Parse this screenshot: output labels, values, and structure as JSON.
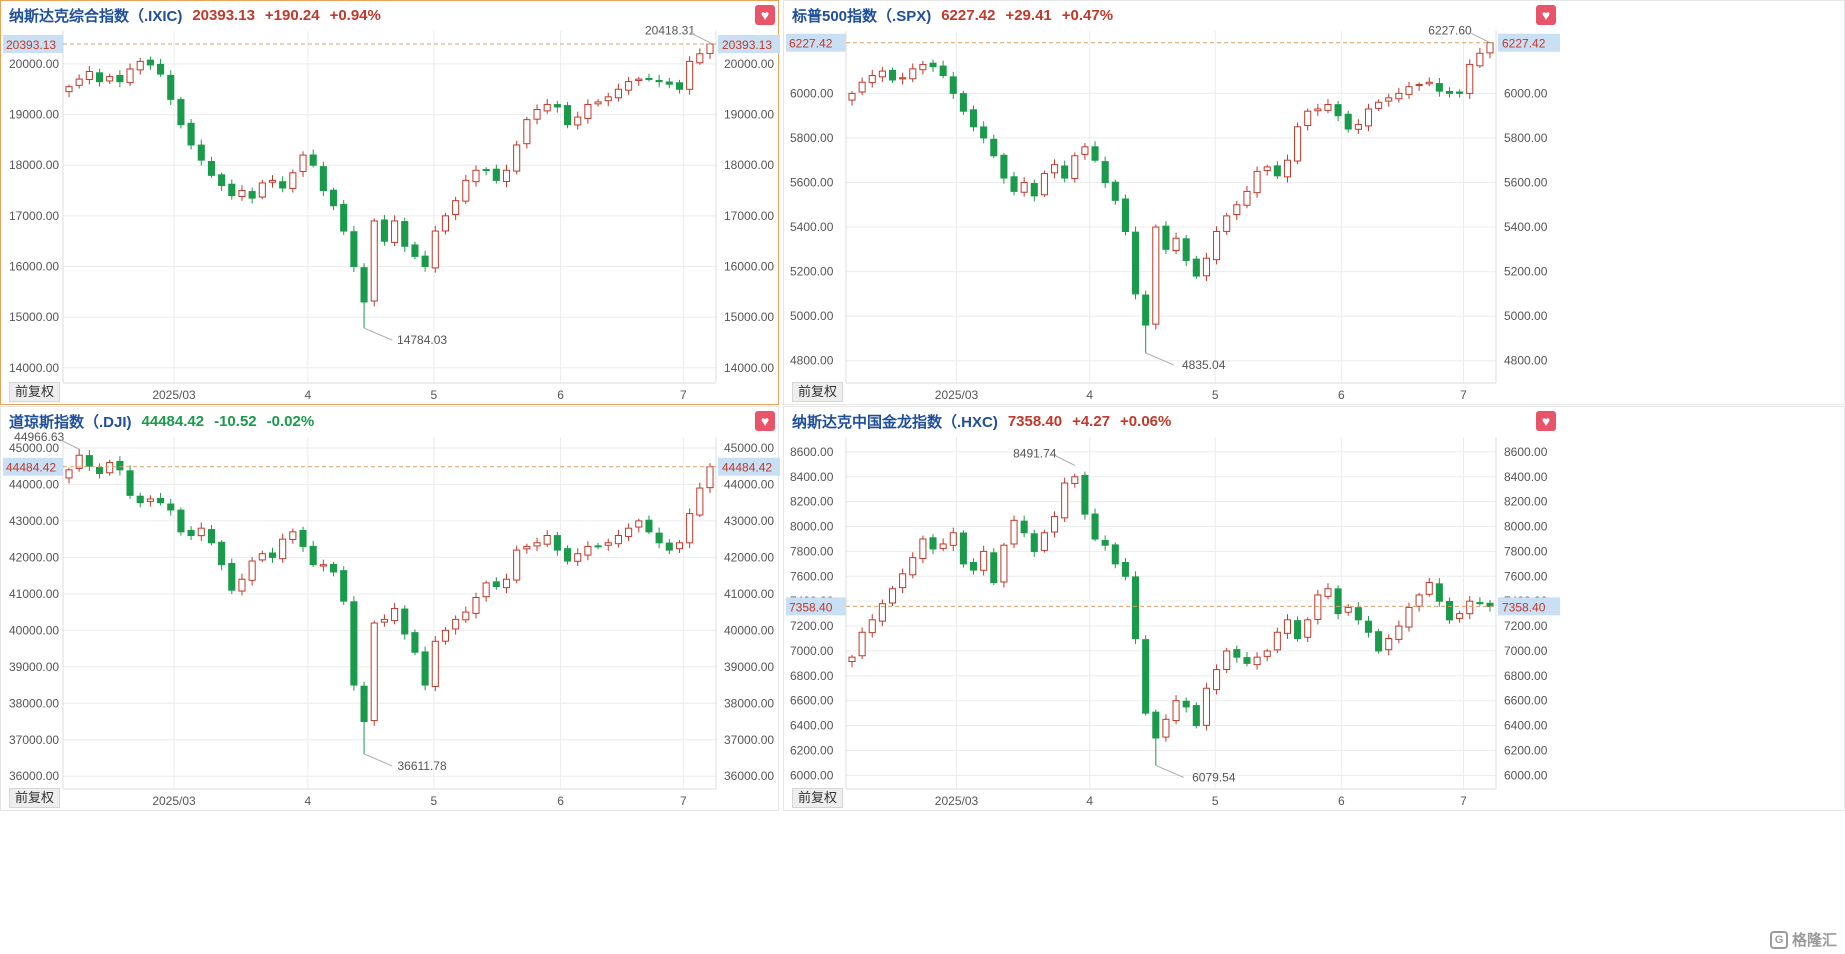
{
  "colors": {
    "up": "#c0392b",
    "down": "#1a9a4b",
    "grid": "#ececec",
    "last_line": "#d9a066",
    "label_bg": "#c9dff3",
    "label_fg": "#c0392b",
    "axis_text": "#555555"
  },
  "common": {
    "fuquan_label": "前复权",
    "heart_icon": "heart-icon"
  },
  "watermark": {
    "text": "格隆汇"
  },
  "panels": [
    {
      "name": "纳斯达克综合指数（.IXIC)",
      "price": "20393.13",
      "change": "+190.24",
      "pct": "+0.94%",
      "direction": "up",
      "active": true,
      "last_label": "20393.13",
      "high_label": "20418.31",
      "low_label": "14784.03"
    },
    {
      "name": "标普500指数（.SPX)",
      "price": "6227.42",
      "change": "+29.41",
      "pct": "+0.47%",
      "direction": "up",
      "active": false,
      "last_label": "6227.42",
      "high_label": "6227.60",
      "low_label": "4835.04"
    },
    {
      "name": "道琼斯指数（.DJI)",
      "price": "44484.42",
      "change": "-10.52",
      "pct": "-0.02%",
      "direction": "down",
      "active": false,
      "last_label": "44484.42",
      "high_label": "44966.63",
      "low_label": "36611.78"
    },
    {
      "name": "纳斯达克中国金龙指数（.HXC)",
      "price": "7358.40",
      "change": "+4.27",
      "pct": "+0.06%",
      "direction": "up",
      "active": false,
      "last_label": "7358.40",
      "high_label": "8491.74",
      "low_label": "6079.54"
    }
  ],
  "chart_data": [
    {
      "type": "candlestick",
      "title": "纳斯达克综合指数（.IXIC)",
      "x_ticks": [
        "2025/03",
        "4",
        "5",
        "6",
        "7"
      ],
      "y_ticks": [
        "14000.00",
        "15000.00",
        "16000.00",
        "17000.00",
        "18000.00",
        "19000.00",
        "20000.00"
      ],
      "ylim": [
        13700,
        20650
      ],
      "last": 20393.13,
      "high": 20418.31,
      "low": 14784.03,
      "close_path": [
        19550,
        19700,
        19850,
        19650,
        19750,
        19650,
        19900,
        20050,
        19980,
        19800,
        19300,
        18800,
        18400,
        18100,
        17800,
        17600,
        17400,
        17500,
        17350,
        17650,
        17700,
        17550,
        17850,
        18200,
        18000,
        17500,
        17200,
        16700,
        16000,
        15300,
        16900,
        16500,
        16900,
        16400,
        16200,
        16000,
        16700,
        17000,
        17300,
        17700,
        17900,
        17900,
        17700,
        17900,
        18400,
        18900,
        19100,
        19200,
        19150,
        18800,
        18950,
        19200,
        19250,
        19350,
        19500,
        19650,
        19700,
        19700,
        19650,
        19600,
        19500,
        20050,
        20200,
        20393.13
      ]
    },
    {
      "type": "candlestick",
      "title": "标普500指数（.SPX)",
      "x_ticks": [
        "2025/03",
        "4",
        "5",
        "6",
        "7"
      ],
      "y_ticks": [
        "4800.00",
        "5000.00",
        "5200.00",
        "5400.00",
        "5600.00",
        "5800.00",
        "6000.00"
      ],
      "ylim": [
        4700,
        6280
      ],
      "last": 6227.42,
      "high": 6227.6,
      "low": 4835.04,
      "close_path": [
        6000,
        6050,
        6080,
        6100,
        6060,
        6070,
        6110,
        6130,
        6120,
        6080,
        6000,
        5920,
        5850,
        5800,
        5720,
        5620,
        5560,
        5600,
        5540,
        5640,
        5680,
        5620,
        5720,
        5760,
        5700,
        5600,
        5520,
        5380,
        5100,
        4960,
        5400,
        5300,
        5350,
        5250,
        5180,
        5260,
        5380,
        5450,
        5500,
        5560,
        5650,
        5670,
        5630,
        5700,
        5850,
        5920,
        5930,
        5950,
        5900,
        5840,
        5860,
        5930,
        5960,
        5980,
        6000,
        6030,
        6040,
        6050,
        6010,
        6000,
        6000,
        6130,
        6180,
        6227.42
      ]
    },
    {
      "type": "candlestick",
      "title": "道琼斯指数（.DJI)",
      "x_ticks": [
        "2025/03",
        "4",
        "5",
        "6",
        "7"
      ],
      "y_ticks": [
        "36000.00",
        "37000.00",
        "38000.00",
        "39000.00",
        "40000.00",
        "41000.00",
        "42000.00",
        "43000.00",
        "44000.00",
        "45000.00"
      ],
      "ylim": [
        35650,
        45300
      ],
      "last": 44484.42,
      "high": 44966.63,
      "low": 36611.78,
      "close_path": [
        44400,
        44800,
        44500,
        44300,
        44600,
        44400,
        43700,
        43500,
        43600,
        43500,
        43300,
        42700,
        42600,
        42800,
        42400,
        41800,
        41100,
        41400,
        41900,
        42100,
        42000,
        42500,
        42700,
        42300,
        41800,
        41800,
        41600,
        40800,
        38500,
        37500,
        40200,
        40300,
        40600,
        39900,
        39400,
        38500,
        39700,
        40000,
        40300,
        40500,
        40900,
        41300,
        41200,
        41400,
        42200,
        42300,
        42400,
        42600,
        42200,
        41900,
        42100,
        42300,
        42300,
        42400,
        42600,
        42800,
        43000,
        42700,
        42400,
        42200,
        42400,
        43200,
        43900,
        44484.42
      ]
    },
    {
      "type": "candlestick",
      "title": "纳斯达克中国金龙指数（.HXC)",
      "x_ticks": [
        "2025/03",
        "4",
        "5",
        "6",
        "7"
      ],
      "y_ticks": [
        "6000.00",
        "6200.00",
        "6400.00",
        "6600.00",
        "6800.00",
        "7000.00",
        "7200.00",
        "7400.00",
        "7600.00",
        "7800.00",
        "8000.00",
        "8200.00",
        "8400.00",
        "8600.00"
      ],
      "ylim": [
        5890,
        8720
      ],
      "last": 7358.4,
      "high": 8491.74,
      "low": 6079.54,
      "close_path": [
        6950,
        7150,
        7250,
        7380,
        7500,
        7620,
        7750,
        7900,
        7820,
        7860,
        7950,
        7700,
        7650,
        7800,
        7550,
        7850,
        8050,
        7950,
        7800,
        7950,
        8080,
        8350,
        8400,
        8100,
        7900,
        7850,
        7700,
        7600,
        7100,
        6500,
        6300,
        6450,
        6600,
        6550,
        6400,
        6700,
        6850,
        7000,
        6950,
        6900,
        6950,
        7000,
        7150,
        7250,
        7100,
        7250,
        7450,
        7500,
        7300,
        7350,
        7250,
        7150,
        7000,
        7100,
        7200,
        7350,
        7450,
        7550,
        7400,
        7250,
        7300,
        7400,
        7380,
        7358.4
      ]
    }
  ]
}
